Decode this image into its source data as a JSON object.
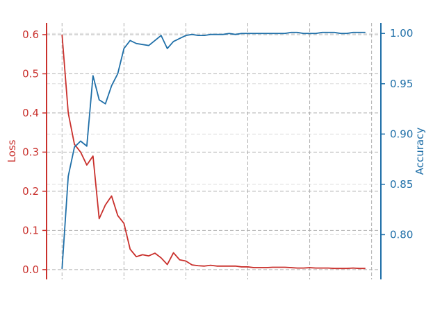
{
  "chart_data": {
    "type": "line",
    "title": "",
    "xlabel": "",
    "grid": true,
    "x": [
      0,
      1,
      2,
      3,
      4,
      5,
      6,
      7,
      8,
      9,
      10,
      11,
      12,
      13,
      14,
      15,
      16,
      17,
      18,
      19,
      20,
      21,
      22,
      23,
      24,
      25,
      26,
      27,
      28,
      29,
      30,
      31,
      32,
      33,
      34,
      35,
      36,
      37,
      38,
      39,
      40,
      41,
      42,
      43,
      44,
      45,
      46,
      47,
      48,
      49
    ],
    "xlim": [
      -2.5,
      51.5
    ],
    "y_left": {
      "label": "Loss",
      "color": "#c9302c",
      "ylim": [
        -0.025,
        0.63
      ],
      "ticks": [
        0.0,
        0.1,
        0.2,
        0.3,
        0.4,
        0.5,
        0.6
      ],
      "tick_labels": [
        "0.0",
        "0.1",
        "0.2",
        "0.3",
        "0.4",
        "0.5",
        "0.6"
      ]
    },
    "y_right": {
      "label": "Accuracy",
      "color": "#1f6fa8",
      "ylim": [
        0.7555,
        1.0105
      ],
      "ticks": [
        0.8,
        0.85,
        0.9,
        0.95,
        1.0
      ],
      "tick_labels": [
        "0.80",
        "0.85",
        "0.90",
        "0.95",
        "1.00"
      ]
    },
    "series": [
      {
        "axis": "left",
        "color": "#c9302c",
        "values": [
          0.6,
          0.4,
          0.32,
          0.3,
          0.267,
          0.29,
          0.13,
          0.165,
          0.188,
          0.138,
          0.118,
          0.052,
          0.033,
          0.038,
          0.035,
          0.042,
          0.03,
          0.013,
          0.043,
          0.025,
          0.022,
          0.012,
          0.01,
          0.009,
          0.011,
          0.009,
          0.009,
          0.009,
          0.009,
          0.007,
          0.007,
          0.005,
          0.005,
          0.005,
          0.006,
          0.006,
          0.006,
          0.005,
          0.004,
          0.004,
          0.005,
          0.004,
          0.004,
          0.004,
          0.003,
          0.003,
          0.003,
          0.004,
          0.003,
          0.003
        ]
      },
      {
        "axis": "right",
        "color": "#1f6fa8",
        "values": [
          0.766,
          0.858,
          0.887,
          0.893,
          0.888,
          0.958,
          0.934,
          0.93,
          0.948,
          0.96,
          0.985,
          0.993,
          0.99,
          0.989,
          0.988,
          0.993,
          0.998,
          0.985,
          0.992,
          0.995,
          0.998,
          0.999,
          0.998,
          0.998,
          0.999,
          0.999,
          0.999,
          1.0,
          0.999,
          1.0,
          1.0,
          1.0,
          1.0,
          1.0,
          1.0,
          1.0,
          1.0,
          1.001,
          1.001,
          1.0,
          1.0,
          1.0,
          1.001,
          1.001,
          1.001,
          1.0,
          1.0,
          1.001,
          1.001,
          1.001
        ]
      }
    ]
  }
}
